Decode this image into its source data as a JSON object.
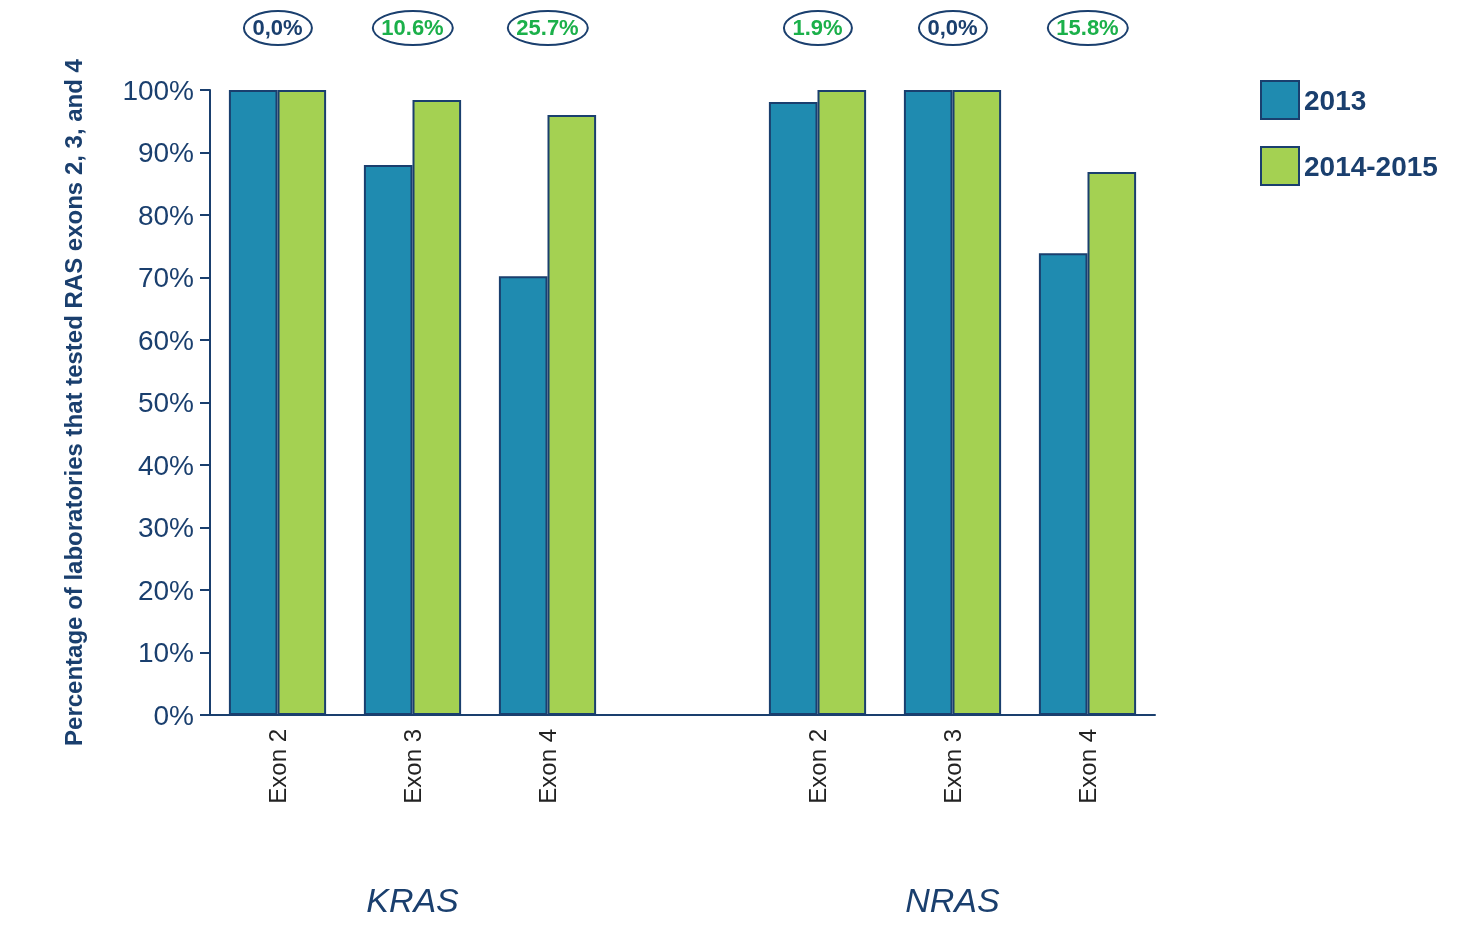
{
  "chart_data": {
    "type": "bar",
    "ylabel": "Percentage of laboratories that tested RAS exons 2, 3, and 4",
    "categories": [
      "Exon 2",
      "Exon 3",
      "Exon 4",
      null,
      "Exon 2",
      "Exon 3",
      "Exon 4"
    ],
    "series": [
      {
        "name": "2013",
        "color": "#1f8bb0",
        "values": [
          100,
          88,
          70.2,
          null,
          98.1,
          100,
          73.9
        ]
      },
      {
        "name": "2014-2015",
        "color": "#a4d152",
        "values": [
          100,
          98.4,
          96,
          null,
          100,
          100,
          86.9
        ]
      }
    ],
    "ylim": [
      0,
      100
    ],
    "yticks": [
      {
        "value": 0,
        "label": "0%"
      },
      {
        "value": 10,
        "label": "10%"
      },
      {
        "value": 20,
        "label": "20%"
      },
      {
        "value": 30,
        "label": "30%"
      },
      {
        "value": 40,
        "label": "40%"
      },
      {
        "value": 50,
        "label": "50%"
      },
      {
        "value": 60,
        "label": "60%"
      },
      {
        "value": 70,
        "label": "70%"
      },
      {
        "value": 80,
        "label": "80%"
      },
      {
        "value": 90,
        "label": "90%"
      },
      {
        "value": 100,
        "label": "100%"
      }
    ],
    "annotations": [
      "0,0%",
      "10.6%",
      "25.7%",
      "1.9%",
      "0,0%",
      "15.8%",
      "KRAS",
      "NRAS"
    ],
    "legend": "top right",
    "grid": false
  }
}
